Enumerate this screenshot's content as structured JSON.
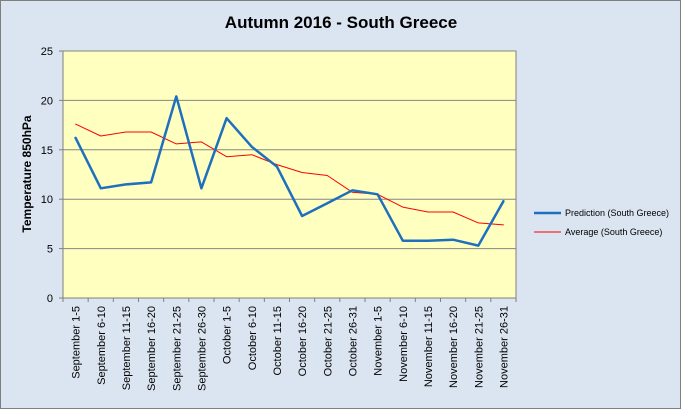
{
  "chart_data": {
    "type": "line",
    "title": "Autumn 2016 - South Greece",
    "xlabel": "",
    "ylabel": "Temperature 850hPa",
    "ylim": [
      0,
      25
    ],
    "yticks": [
      0,
      5,
      10,
      15,
      20,
      25
    ],
    "grid": true,
    "legend_position": "right",
    "plot_background": "#ffffc0",
    "chart_background": "#dbe5f1",
    "categories": [
      "September 1-5",
      "September 6-10",
      "September 11-15",
      "September 16-20",
      "September 21-25",
      "September 26-30",
      "October 1-5",
      "October 6-10",
      "October 11-15",
      "October 16-20",
      "October 21-25",
      "October 26-31",
      "November 1-5",
      "November 6-10",
      "November 11-15",
      "November 16-20",
      "November 21-25",
      "November 26-31"
    ],
    "series": [
      {
        "name": "Prediction (South Greece)",
        "color": "#1f6fbf",
        "values": [
          16.2,
          11.1,
          11.5,
          11.7,
          20.4,
          11.1,
          18.2,
          15.3,
          13.3,
          8.3,
          9.6,
          10.9,
          10.5,
          5.8,
          5.8,
          5.9,
          5.3,
          9.8
        ]
      },
      {
        "name": "Average (South Greece)",
        "color": "#ff0000",
        "values": [
          17.6,
          16.4,
          16.8,
          16.8,
          15.6,
          15.8,
          14.3,
          14.5,
          13.5,
          12.7,
          12.4,
          10.7,
          10.5,
          9.2,
          8.7,
          8.7,
          7.6,
          7.4
        ]
      }
    ]
  }
}
